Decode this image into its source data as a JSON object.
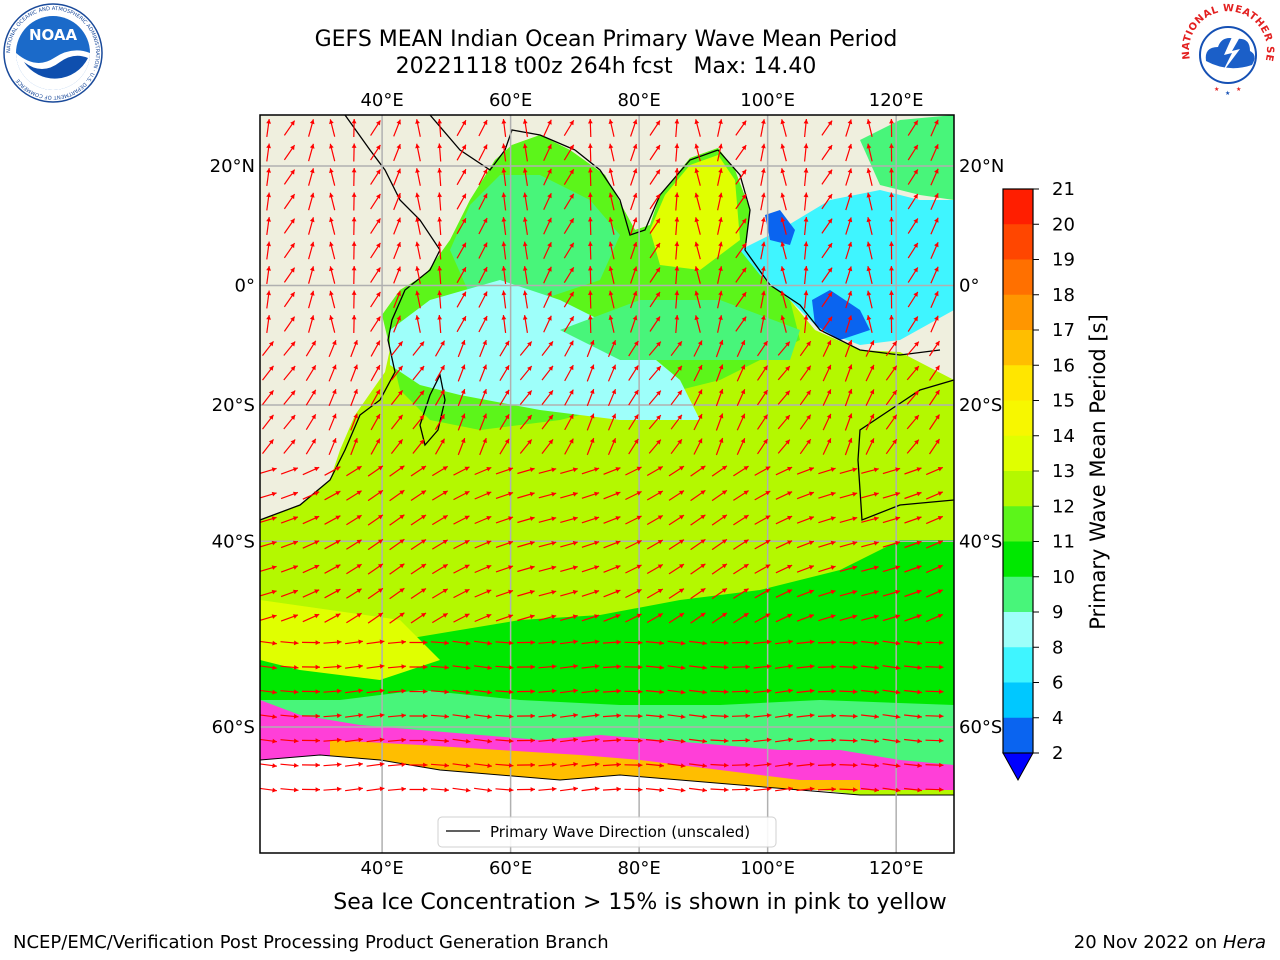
{
  "header": {
    "title_line1": "GEFS MEAN Indian Ocean Primary Wave Mean Period",
    "title_line2": "20221118 t00z 264h fcst   Max: 14.40"
  },
  "logos": {
    "left": "noaa-logo",
    "left_text": "NOAA",
    "left_ring_text": "NATIONAL OCEANIC AND ATMOSPHERIC ADMINISTRATION · U.S. DEPARTMENT OF COMMERCE",
    "right": "national-weather-service-logo",
    "right_ring_text": "NATIONAL WEATHER SERVICE"
  },
  "map": {
    "lon_ticks": [
      "40°E",
      "60°E",
      "80°E",
      "100°E",
      "120°E"
    ],
    "lon_values": [
      40,
      60,
      80,
      100,
      120
    ],
    "lat_ticks": [
      "20°N",
      "0°",
      "20°S",
      "40°S",
      "60°S"
    ],
    "lat_values": [
      20,
      0,
      -20,
      -40,
      -60
    ],
    "legend_label": "Primary Wave Direction (unscaled)",
    "arrow_color": "#ff0000",
    "land_color": "#efefde",
    "grid": true
  },
  "colorbar": {
    "label": "Primary Wave Mean Period [s]",
    "tick_labels": [
      "2",
      "4",
      "6",
      "8",
      "9",
      "10",
      "11",
      "12",
      "13",
      "14",
      "15",
      "16",
      "17",
      "18",
      "19",
      "20",
      "21"
    ],
    "colors": [
      "#0a64f0",
      "#00c8ff",
      "#3ff5ff",
      "#9efffa",
      "#48f57a",
      "#00e800",
      "#5cf51a",
      "#b4f800",
      "#e0ff00",
      "#f7f700",
      "#ffe600",
      "#ffbe00",
      "#ff9600",
      "#ff7000",
      "#ff4600",
      "#ff1e00"
    ],
    "extend_color": "#0000ff"
  },
  "subtitle": "Sea Ice Concentration > 15% is shown in pink to yellow",
  "footer": {
    "left": "NCEP/EMC/Verification Post Processing Product Generation Branch",
    "right_prefix": "20 Nov 2022 on ",
    "right_host": "Hera"
  }
}
